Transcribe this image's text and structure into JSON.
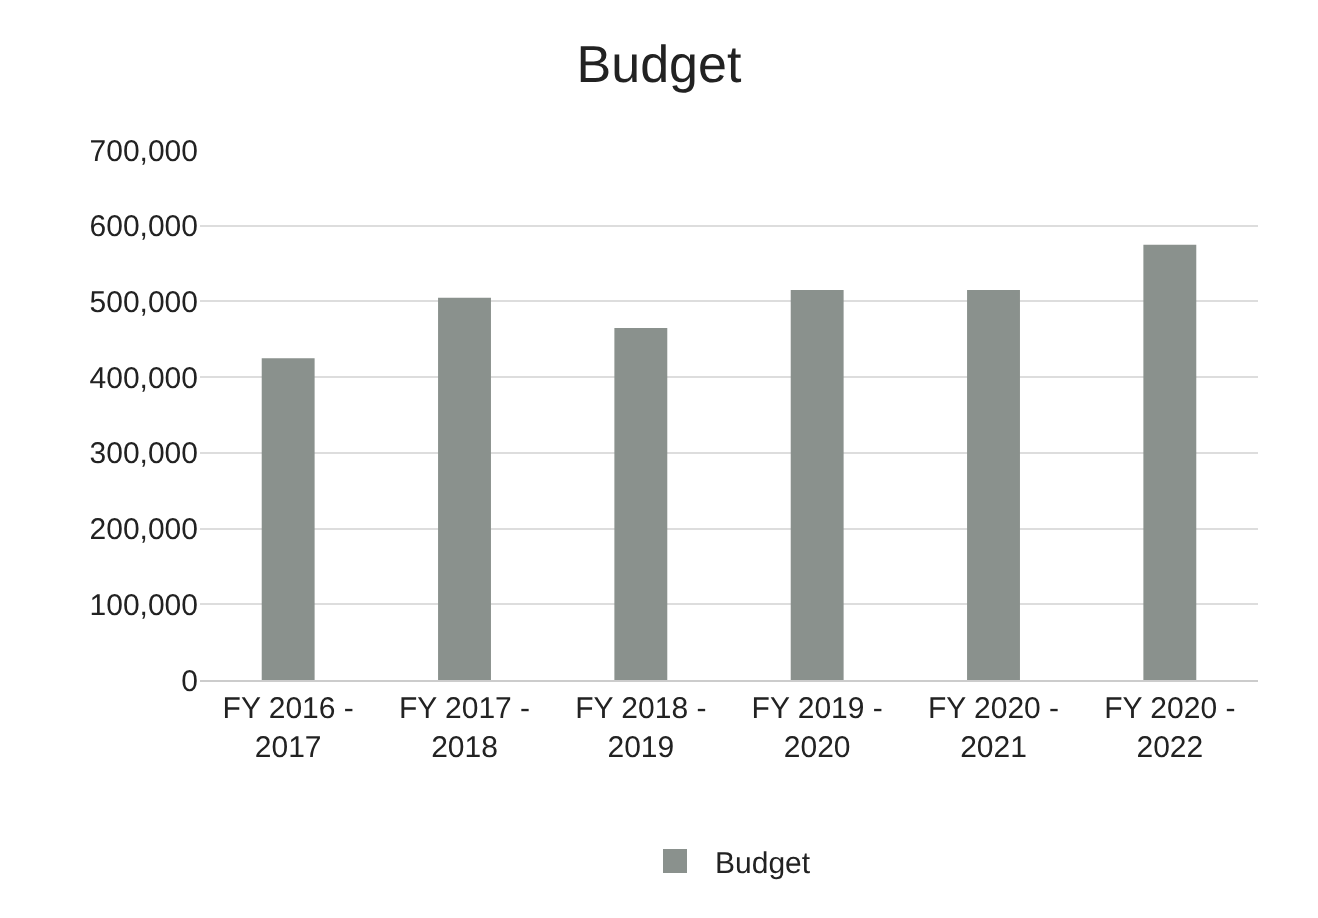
{
  "chart_data": {
    "type": "bar",
    "title": "Budget",
    "categories": [
      "FY 2016 - 2017",
      "FY 2017 - 2018",
      "FY 2018 - 2019",
      "FY 2019 - 2020",
      "FY 2020 - 2021",
      "FY 2020 - 2022"
    ],
    "series": [
      {
        "name": "Budget",
        "color": "#8a918d",
        "values": [
          425000,
          505000,
          465000,
          515000,
          515000,
          575000
        ]
      }
    ],
    "ylim": [
      0,
      700000
    ],
    "yticks": [
      {
        "value": 0,
        "label": "0"
      },
      {
        "value": 100000,
        "label": "100,000"
      },
      {
        "value": 200000,
        "label": "200,000"
      },
      {
        "value": 300000,
        "label": "300,000"
      },
      {
        "value": 400000,
        "label": "400,000"
      },
      {
        "value": 500000,
        "label": "500,000"
      },
      {
        "value": 600000,
        "label": "600,000"
      },
      {
        "value": 700000,
        "label": "700,000"
      }
    ],
    "grid": "y",
    "legend": "bottom"
  }
}
